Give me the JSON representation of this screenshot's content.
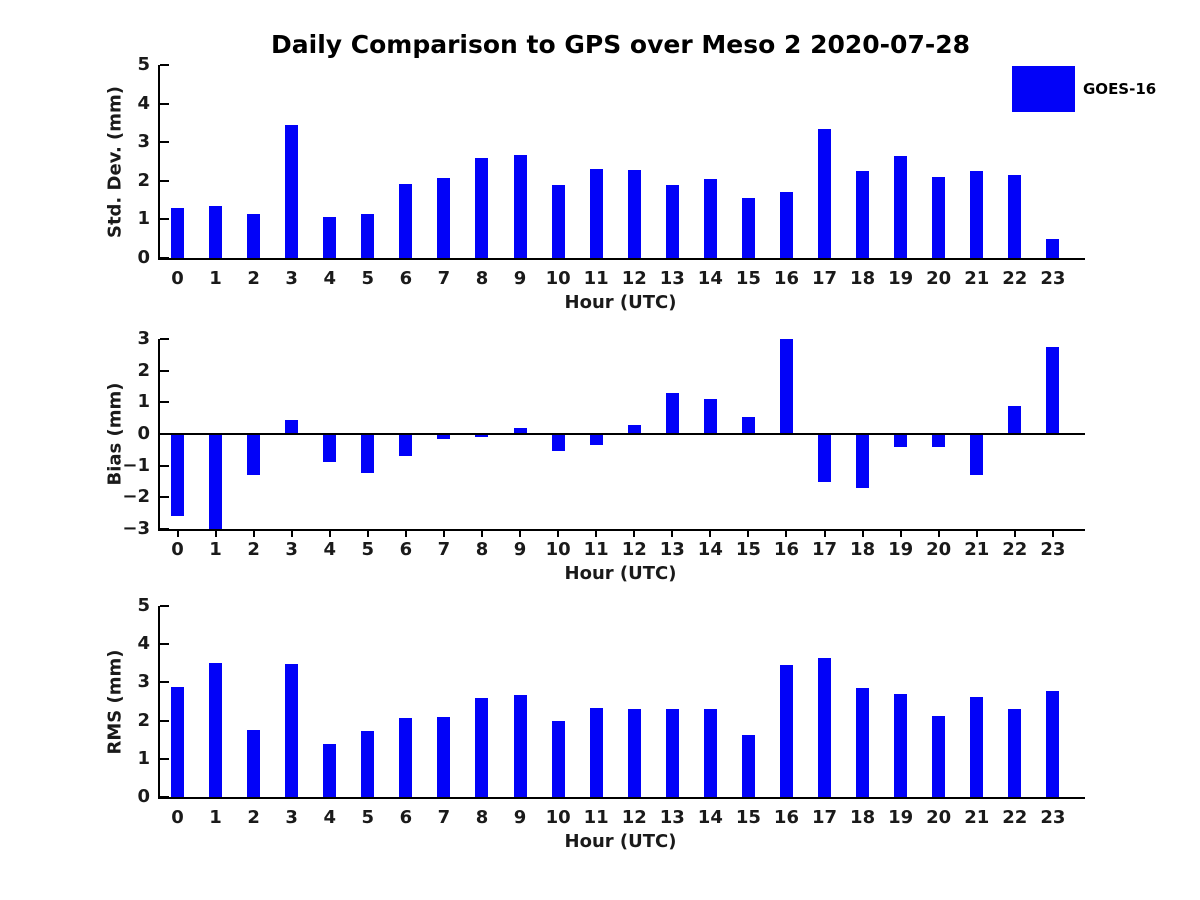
{
  "title": "Daily Comparison to GPS over Meso 2 2020-07-28",
  "legend": {
    "label": "GOES-16",
    "color": "#0202F8"
  },
  "chart_data": [
    {
      "type": "bar",
      "title": "Daily Comparison to GPS over Meso 2 2020-07-28",
      "xlabel": "Hour (UTC)",
      "ylabel": "Std. Dev. (mm)",
      "ylim": [
        0,
        5
      ],
      "yticks": [
        0,
        1,
        2,
        3,
        4,
        5
      ],
      "grid": false,
      "legend_position": "upper-right-of-figure",
      "categories": [
        "0",
        "1",
        "2",
        "3",
        "4",
        "5",
        "6",
        "7",
        "8",
        "9",
        "10",
        "11",
        "12",
        "13",
        "14",
        "15",
        "16",
        "17",
        "18",
        "19",
        "20",
        "21",
        "22",
        "23"
      ],
      "series": [
        {
          "name": "GOES-16",
          "values": [
            1.3,
            1.35,
            1.15,
            3.45,
            1.05,
            1.15,
            1.93,
            2.08,
            2.6,
            2.66,
            1.9,
            2.31,
            2.29,
            1.9,
            2.05,
            1.55,
            1.72,
            3.35,
            2.26,
            2.65,
            2.09,
            2.26,
            2.14,
            0.5
          ]
        }
      ]
    },
    {
      "type": "bar",
      "title": "",
      "xlabel": "Hour (UTC)",
      "ylabel": "Bias (mm)",
      "ylim": [
        -3,
        3
      ],
      "yticks": [
        3,
        2,
        1,
        0,
        -1,
        -2,
        -3
      ],
      "grid": false,
      "categories": [
        "0",
        "1",
        "2",
        "3",
        "4",
        "5",
        "6",
        "7",
        "8",
        "9",
        "10",
        "11",
        "12",
        "13",
        "14",
        "15",
        "16",
        "17",
        "18",
        "19",
        "20",
        "21",
        "22",
        "23"
      ],
      "series": [
        {
          "name": "GOES-16",
          "values": [
            -2.6,
            -3.0,
            -1.3,
            0.45,
            -0.88,
            -1.22,
            -0.7,
            -0.15,
            -0.1,
            0.18,
            -0.55,
            -0.35,
            0.3,
            1.28,
            1.1,
            0.55,
            3.0,
            -1.5,
            -1.7,
            -0.4,
            -0.42,
            -1.29,
            0.89,
            2.75
          ]
        }
      ]
    },
    {
      "type": "bar",
      "title": "",
      "xlabel": "Hour (UTC)",
      "ylabel": "RMS (mm)",
      "ylim": [
        0,
        5
      ],
      "yticks": [
        0,
        1,
        2,
        3,
        4,
        5
      ],
      "grid": false,
      "categories": [
        "0",
        "1",
        "2",
        "3",
        "4",
        "5",
        "6",
        "7",
        "8",
        "9",
        "10",
        "11",
        "12",
        "13",
        "14",
        "15",
        "16",
        "17",
        "18",
        "19",
        "20",
        "21",
        "22",
        "23"
      ],
      "series": [
        {
          "name": "GOES-16",
          "values": [
            2.88,
            3.5,
            1.75,
            3.47,
            1.38,
            1.72,
            2.08,
            2.1,
            2.6,
            2.67,
            1.98,
            2.34,
            2.31,
            2.3,
            2.3,
            1.63,
            3.45,
            3.65,
            2.85,
            2.7,
            2.13,
            2.61,
            2.3,
            2.77
          ]
        }
      ]
    }
  ]
}
